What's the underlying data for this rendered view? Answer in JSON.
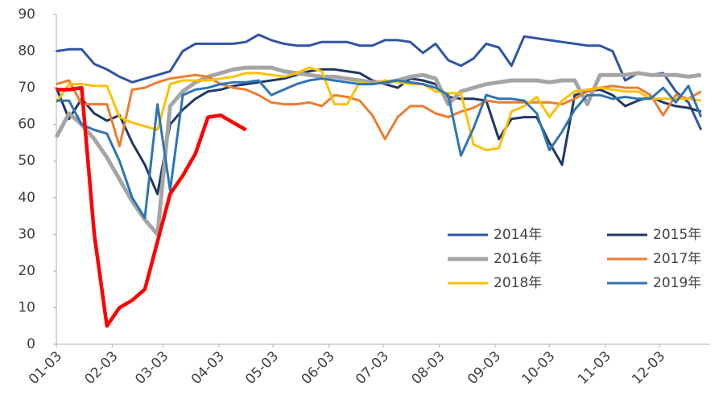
{
  "chart_data": {
    "type": "line",
    "x": [
      3,
      10,
      17,
      24,
      31,
      38,
      45,
      52,
      59,
      66,
      73,
      80,
      87,
      94,
      101,
      108,
      115,
      122,
      129,
      136,
      143,
      150,
      157,
      164,
      171,
      178,
      185,
      192,
      199,
      206,
      213,
      220,
      227,
      234,
      241,
      248,
      255,
      262,
      269,
      276,
      283,
      290,
      297,
      304,
      311,
      318,
      325,
      332,
      339,
      346,
      353,
      360
    ],
    "xlim": [
      3,
      365
    ],
    "xticks": [
      {
        "value": 3,
        "label": "01-03"
      },
      {
        "value": 34,
        "label": "02-03"
      },
      {
        "value": 62,
        "label": "03-03"
      },
      {
        "value": 93,
        "label": "04-03"
      },
      {
        "value": 123,
        "label": "05-03"
      },
      {
        "value": 154,
        "label": "06-03"
      },
      {
        "value": 184,
        "label": "07-03"
      },
      {
        "value": 215,
        "label": "08-03"
      },
      {
        "value": 246,
        "label": "09-03"
      },
      {
        "value": 276,
        "label": "10-03"
      },
      {
        "value": 307,
        "label": "11-03"
      },
      {
        "value": 337,
        "label": "12-03"
      }
    ],
    "ylim": [
      0,
      90
    ],
    "yticks": [
      0,
      10,
      20,
      30,
      40,
      50,
      60,
      70,
      80,
      90
    ],
    "legend": "lower right",
    "series": [
      {
        "name": "2014年",
        "color": "#2f55a4",
        "line_width": 3,
        "values": [
          80,
          80.5,
          80.5,
          76.5,
          75,
          73,
          71.5,
          72.5,
          73.5,
          74.5,
          80,
          82,
          82,
          82,
          82,
          82.5,
          84.5,
          83,
          82,
          81.5,
          81.5,
          82.5,
          82.5,
          82.5,
          81.5,
          81.5,
          83,
          83,
          82.5,
          79.5,
          82,
          77.5,
          76,
          78,
          82,
          81,
          76,
          84,
          83.5,
          83,
          82.5,
          82,
          81.5,
          81.5,
          80,
          72,
          74,
          73.5,
          74,
          69,
          66,
          58.5
        ]
      },
      {
        "name": "2015年",
        "color": "#1f3864",
        "line_width": 3,
        "values": [
          70,
          61.5,
          67,
          63,
          61,
          62.5,
          55,
          49,
          41,
          60,
          64,
          67,
          69,
          69.5,
          70.5,
          71,
          71.5,
          72,
          72.5,
          73.5,
          74.5,
          75,
          75,
          74.5,
          74,
          72,
          71,
          70,
          72.5,
          72,
          71,
          67.5,
          67,
          67,
          66.5,
          56,
          61.5,
          62,
          62,
          55,
          49,
          68,
          69,
          69.5,
          68,
          65,
          66.5,
          67.5,
          66,
          65,
          64.5,
          63.5
        ]
      },
      {
        "name": "2016年",
        "color": "#a5a5a5",
        "line_width": 5,
        "values": [
          56.5,
          63,
          60,
          56,
          51,
          45,
          39,
          34,
          30,
          65,
          69,
          71.5,
          73,
          74,
          75,
          75.5,
          75.5,
          75.5,
          74.5,
          74,
          73.5,
          73,
          73,
          72.5,
          72,
          71.5,
          71.5,
          72,
          73,
          73.5,
          72.5,
          65.5,
          69,
          70,
          71,
          71.5,
          72,
          72,
          72,
          71.5,
          72,
          72,
          65.5,
          73.5,
          73.5,
          73.5,
          74,
          73.5,
          73.5,
          73.5,
          73,
          73.5
        ]
      },
      {
        "name": "2017年",
        "color": "#ed7d31",
        "line_width": 3,
        "values": [
          71,
          72,
          65.5,
          65.5,
          65.5,
          54,
          69.5,
          70,
          71.5,
          72.5,
          73,
          73.5,
          73,
          71,
          70,
          69.5,
          68,
          66,
          65.5,
          65.5,
          66,
          65,
          68,
          67.5,
          66.5,
          62.5,
          56,
          62,
          65,
          65,
          63,
          62,
          63.5,
          64.5,
          66.5,
          66,
          66,
          66,
          66,
          66,
          65.5,
          67,
          69,
          70,
          70.5,
          70,
          70,
          68,
          62.5,
          68,
          67,
          69
        ]
      },
      {
        "name": "2018年",
        "color": "#ffc000",
        "line_width": 3,
        "values": [
          66,
          71,
          71,
          70.5,
          70.5,
          62,
          60.5,
          59.5,
          58.5,
          71,
          72,
          72,
          72,
          72.5,
          73,
          74,
          74,
          73.5,
          73,
          74,
          75.5,
          74.5,
          65.5,
          65.5,
          71.5,
          71,
          72,
          71.5,
          71,
          71,
          69,
          68.5,
          68.5,
          54.5,
          53,
          53.5,
          63.5,
          65,
          67.5,
          62,
          66.5,
          69,
          69.5,
          70,
          69.5,
          69,
          69,
          67,
          67,
          67,
          67,
          66.5
        ]
      },
      {
        "name": "2019年",
        "color": "#2e75b6",
        "line_width": 3,
        "values": [
          66.5,
          66.5,
          60,
          58.5,
          57.5,
          50,
          40,
          34.5,
          65.5,
          42,
          68,
          69.5,
          70,
          71,
          71.5,
          71.5,
          72,
          68,
          69.5,
          71,
          72,
          72.5,
          72,
          71.5,
          71,
          71,
          71.5,
          72,
          71.5,
          71,
          70,
          68,
          51.5,
          59,
          68,
          67,
          67,
          66.5,
          63,
          53,
          58,
          64,
          68,
          68,
          67,
          67.5,
          67,
          67,
          70,
          66,
          70.5,
          62
        ]
      },
      {
        "color": "#ff0000",
        "line_width": 4.5,
        "values": [
          69.5,
          69.5,
          70,
          30,
          5,
          10,
          12,
          15,
          28,
          41,
          46,
          52,
          62,
          62.5,
          60.5,
          58.5,
          null,
          null,
          null,
          null,
          null,
          null,
          null,
          null,
          null,
          null,
          null,
          null,
          null,
          null,
          null,
          null,
          null,
          null,
          null,
          null,
          null,
          null,
          null,
          null,
          null,
          null,
          null,
          null,
          null,
          null,
          null,
          null,
          null,
          null,
          null,
          null
        ]
      }
    ]
  }
}
